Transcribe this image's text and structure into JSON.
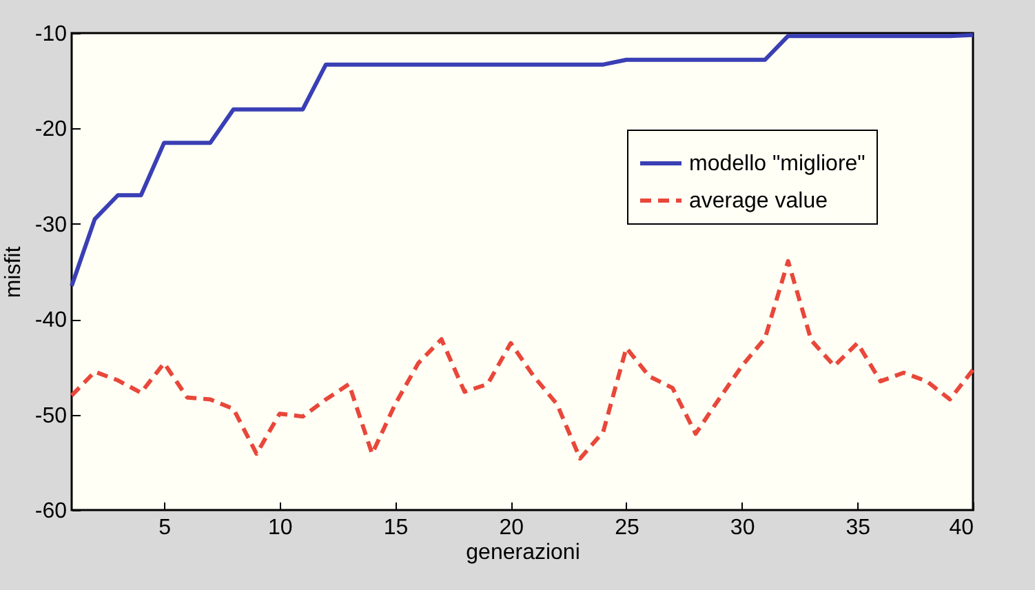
{
  "chart_data": {
    "type": "line",
    "xlabel": "generazioni",
    "ylabel": "misfit",
    "x": [
      1,
      2,
      3,
      4,
      5,
      6,
      7,
      8,
      9,
      10,
      11,
      12,
      13,
      14,
      15,
      16,
      17,
      18,
      19,
      20,
      21,
      22,
      23,
      24,
      25,
      26,
      27,
      28,
      29,
      30,
      31,
      32,
      33,
      34,
      35,
      36,
      37,
      38,
      39,
      40
    ],
    "series": [
      {
        "name": "modello \"migliore\"",
        "color": "#3a3fb5",
        "line_style": "solid",
        "values": [
          -36.5,
          -29.5,
          -27,
          -27,
          -21.5,
          -21.5,
          -21.5,
          -18,
          -18,
          -18,
          -18,
          -13.3,
          -13.3,
          -13.3,
          -13.3,
          -13.3,
          -13.3,
          -13.3,
          -13.3,
          -13.3,
          -13.3,
          -13.3,
          -13.3,
          -13.3,
          -12.8,
          -12.8,
          -12.8,
          -12.8,
          -12.8,
          -12.8,
          -12.8,
          -10.3,
          -10.3,
          -10.3,
          -10.3,
          -10.3,
          -10.3,
          -10.3,
          -10.3,
          -10.2
        ]
      },
      {
        "name": "average value",
        "color": "#e8473a",
        "line_style": "dashed",
        "values": [
          -48,
          -45.5,
          -46.4,
          -47.7,
          -44.6,
          -48.2,
          -48.4,
          -49.4,
          -54.1,
          -49.9,
          -50.2,
          -48.4,
          -46.8,
          -54.1,
          -48.9,
          -44.6,
          -42.1,
          -47.6,
          -46.8,
          -42.5,
          -46,
          -48.9,
          -54.6,
          -51.8,
          -43,
          -46,
          -47.2,
          -52,
          -48.4,
          -44.9,
          -42,
          -33.9,
          -42.2,
          -44.9,
          -42.5,
          -46.5,
          -45.6,
          -46.5,
          -48.4,
          -45.3
        ]
      }
    ],
    "xlim": [
      1,
      40
    ],
    "xticks": [
      5,
      10,
      15,
      20,
      25,
      30,
      35,
      40
    ],
    "ylim": [
      -60,
      -10
    ],
    "yticks": [
      -60,
      -50,
      -40,
      -30,
      -20,
      -10
    ],
    "grid": false,
    "legend": "top right",
    "marker": "none"
  }
}
